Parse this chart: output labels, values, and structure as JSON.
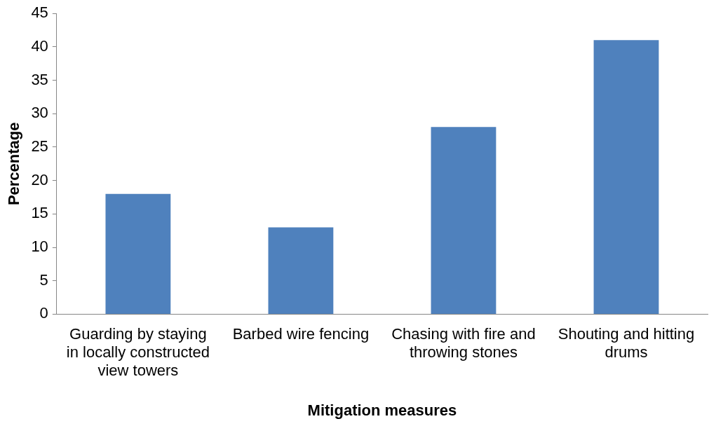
{
  "chart_data": {
    "type": "bar",
    "xlabel": "Mitigation measures",
    "ylabel": "Percentage",
    "categories": [
      "Guarding by staying in locally constructed view towers",
      "Barbed wire fencing",
      "Chasing with fire and throwing stones",
      "Shouting and hitting drums"
    ],
    "values": [
      18,
      13,
      28,
      41
    ],
    "color": "#4f81bd",
    "ylim": [
      0,
      45
    ],
    "yticks": [
      0,
      5,
      10,
      15,
      20,
      25,
      30,
      35,
      40,
      45
    ],
    "grid": false,
    "legend": false
  }
}
